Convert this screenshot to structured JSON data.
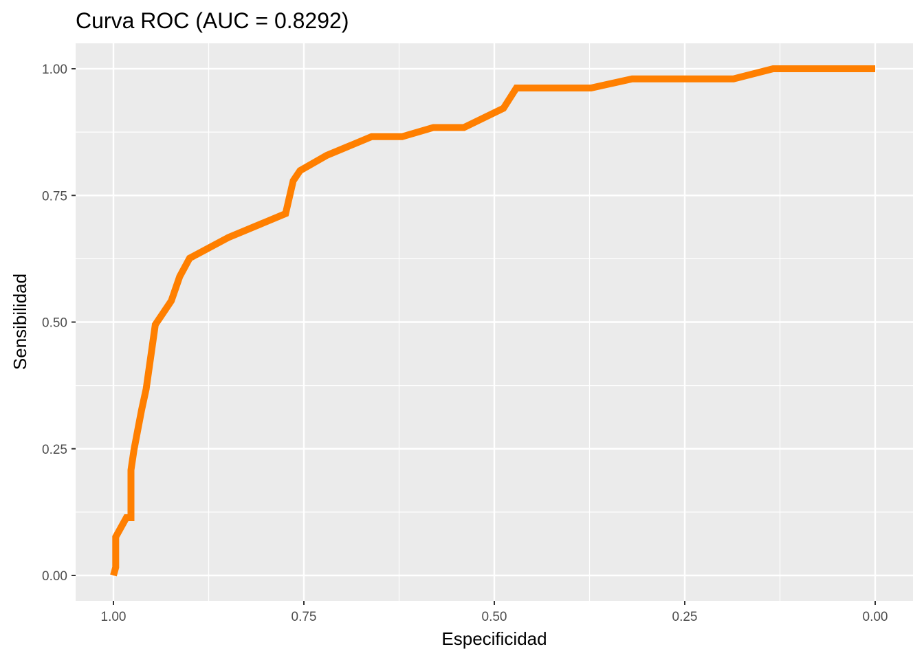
{
  "chart_data": {
    "type": "line",
    "title": "Curva ROC (AUC = 0.8292)",
    "xlabel": "Especificidad",
    "ylabel": "Sensibilidad",
    "x_reversed": true,
    "xlim": [
      1.0,
      0.0
    ],
    "ylim": [
      0.0,
      1.0
    ],
    "x_ticks": [
      1.0,
      0.75,
      0.5,
      0.25,
      0.0
    ],
    "x_tick_labels": [
      "1.00",
      "0.75",
      "0.50",
      "0.25",
      "0.00"
    ],
    "y_ticks": [
      0.0,
      0.25,
      0.5,
      0.75,
      1.0
    ],
    "y_tick_labels": [
      "0.00",
      "0.25",
      "0.50",
      "0.75",
      "1.00"
    ],
    "grid": true,
    "colors": {
      "line": "#ff7f00",
      "panel": "#ebebeb",
      "grid": "#ffffff"
    },
    "series": [
      {
        "x": [
          1.0,
          0.997,
          0.997,
          0.983,
          0.977,
          0.977,
          0.973,
          0.968,
          0.963,
          0.957,
          0.945,
          0.924,
          0.913,
          0.9,
          0.849,
          0.774,
          0.764,
          0.755,
          0.72,
          0.661,
          0.621,
          0.58,
          0.54,
          0.488,
          0.471,
          0.373,
          0.319,
          0.186,
          0.134,
          0.0
        ],
        "y": [
          0.0,
          0.016,
          0.076,
          0.114,
          0.114,
          0.208,
          0.248,
          0.288,
          0.327,
          0.368,
          0.495,
          0.542,
          0.59,
          0.626,
          0.667,
          0.714,
          0.779,
          0.799,
          0.829,
          0.866,
          0.866,
          0.884,
          0.884,
          0.922,
          0.962,
          0.962,
          0.98,
          0.98,
          1.0,
          1.0
        ]
      }
    ]
  }
}
